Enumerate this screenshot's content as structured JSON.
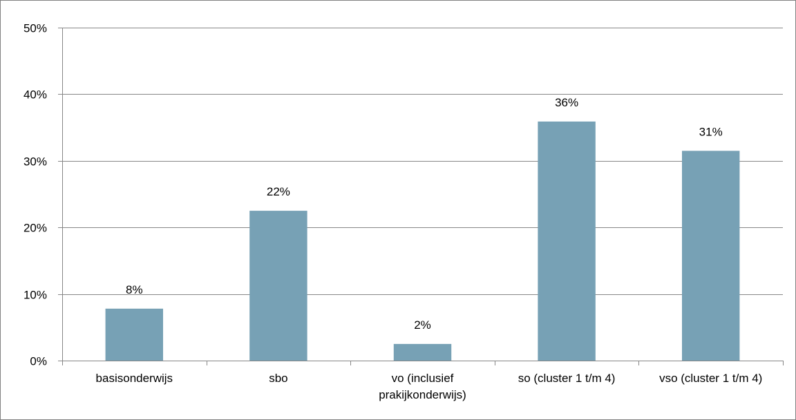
{
  "chart_data": {
    "type": "bar",
    "title": "",
    "xlabel": "",
    "ylabel": "",
    "categories": [
      [
        "basisonderwijs"
      ],
      [
        "sbo"
      ],
      [
        "vo (inclusief",
        "prakijkonderwijs)"
      ],
      [
        "so (cluster 1 t/m 4)"
      ],
      [
        "vso (cluster 1 t/m 4)"
      ]
    ],
    "values": [
      7.8,
      22.5,
      2.5,
      35.9,
      31.5
    ],
    "data_labels": [
      "8%",
      "22%",
      "2%",
      "36%",
      "31%"
    ],
    "ylim": [
      0,
      50
    ],
    "yticks": [
      0,
      10,
      20,
      30,
      40,
      50
    ],
    "ytick_labels": [
      "0%",
      "10%",
      "20%",
      "30%",
      "40%",
      "50%"
    ],
    "grid": true,
    "legend": "none",
    "bar_color": "#77a1b5",
    "grid_color": "#868686"
  }
}
